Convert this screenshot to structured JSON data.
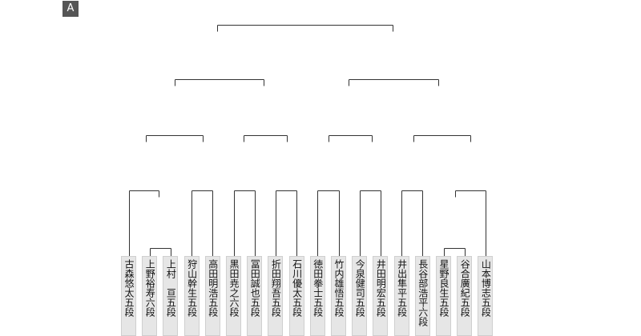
{
  "button": {
    "label": "A"
  },
  "players": [
    "古森悠太五段",
    "上野裕寿六段",
    "上村　亘五段",
    "狩山幹生五段",
    "高田明浩五段",
    "黒田尭之六段",
    "冨田誠也五段",
    "折田翔吾五段",
    "石川優太五段",
    "徳田拳士五段",
    "竹内雄悟五段",
    "今泉健司五段",
    "井田明宏五段",
    "井出隼平五段",
    "長谷部浩平六段",
    "星野良生五段",
    "谷合廣紀五段",
    "山本博志五段"
  ]
}
